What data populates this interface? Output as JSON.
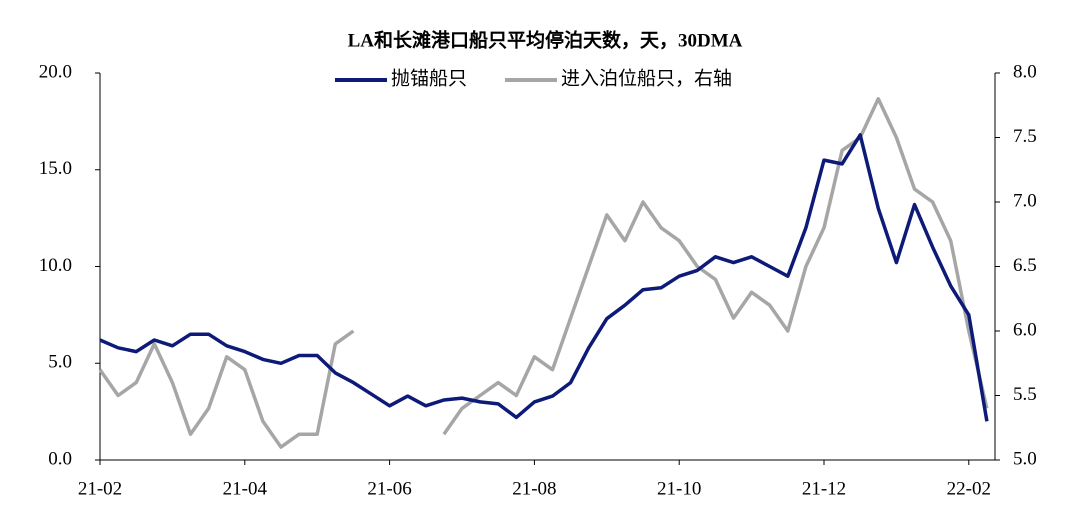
{
  "chart_data": {
    "type": "line",
    "title": "LA和长滩港口船只平均停泊天数，天，30DMA",
    "categories": [
      "21-02",
      null,
      null,
      null,
      null,
      null,
      null,
      null,
      "21-04",
      null,
      null,
      null,
      null,
      null,
      null,
      null,
      "21-06",
      null,
      null,
      null,
      null,
      null,
      null,
      null,
      "21-08",
      null,
      null,
      null,
      null,
      null,
      null,
      null,
      "21-10",
      null,
      null,
      null,
      null,
      null,
      null,
      null,
      "21-12",
      null,
      null,
      null,
      null,
      null,
      null,
      null,
      "22-02",
      null
    ],
    "series": [
      {
        "name": "抛锚船只",
        "color": "#0d1a78",
        "axis": "y",
        "values": [
          6.2,
          5.8,
          5.6,
          6.2,
          5.9,
          6.5,
          6.5,
          5.9,
          5.6,
          5.2,
          5.0,
          5.4,
          5.4,
          4.5,
          4.0,
          3.4,
          2.8,
          3.3,
          2.8,
          3.1,
          3.2,
          3.0,
          2.9,
          2.2,
          3.0,
          3.3,
          4.0,
          5.8,
          7.3,
          8.0,
          8.8,
          8.9,
          9.5,
          9.8,
          10.5,
          10.2,
          10.5,
          10.0,
          9.5,
          12.0,
          15.5,
          15.3,
          16.8,
          13.0,
          10.2,
          13.2,
          11.0,
          9.0,
          7.5,
          2.0
        ]
      },
      {
        "name": "进入泊位船只，右轴",
        "color": "#a6a6a6",
        "axis": "y2",
        "values": [
          5.7,
          5.5,
          5.6,
          5.9,
          5.6,
          5.2,
          5.4,
          5.8,
          5.7,
          5.3,
          5.1,
          5.2,
          5.2,
          5.9,
          6.0,
          null,
          null,
          null,
          null,
          5.2,
          5.4,
          5.5,
          5.6,
          5.5,
          5.8,
          5.7,
          6.1,
          6.5,
          6.9,
          6.7,
          7.0,
          6.8,
          6.7,
          6.5,
          6.4,
          6.1,
          6.3,
          6.2,
          6.0,
          6.5,
          6.8,
          7.4,
          7.5,
          7.8,
          7.5,
          7.1,
          7.0,
          6.7,
          6.0,
          5.4
        ]
      }
    ],
    "ylim": [
      0,
      20
    ],
    "yticks": [
      {
        "value": 0,
        "label": "0.0"
      },
      {
        "value": 5,
        "label": "5.0"
      },
      {
        "value": 10,
        "label": "10.0"
      },
      {
        "value": 15,
        "label": "15.0"
      },
      {
        "value": 20,
        "label": "20.0"
      }
    ],
    "y2lim": [
      5,
      8
    ],
    "y2ticks": [
      {
        "value": 5,
        "label": "5.0"
      },
      {
        "value": 5.5,
        "label": "5.5"
      },
      {
        "value": 6,
        "label": "6.0"
      },
      {
        "value": 6.5,
        "label": "6.5"
      },
      {
        "value": 7,
        "label": "7.0"
      },
      {
        "value": 7.5,
        "label": "7.5"
      },
      {
        "value": 8,
        "label": "8.0"
      }
    ],
    "legend": "top"
  }
}
